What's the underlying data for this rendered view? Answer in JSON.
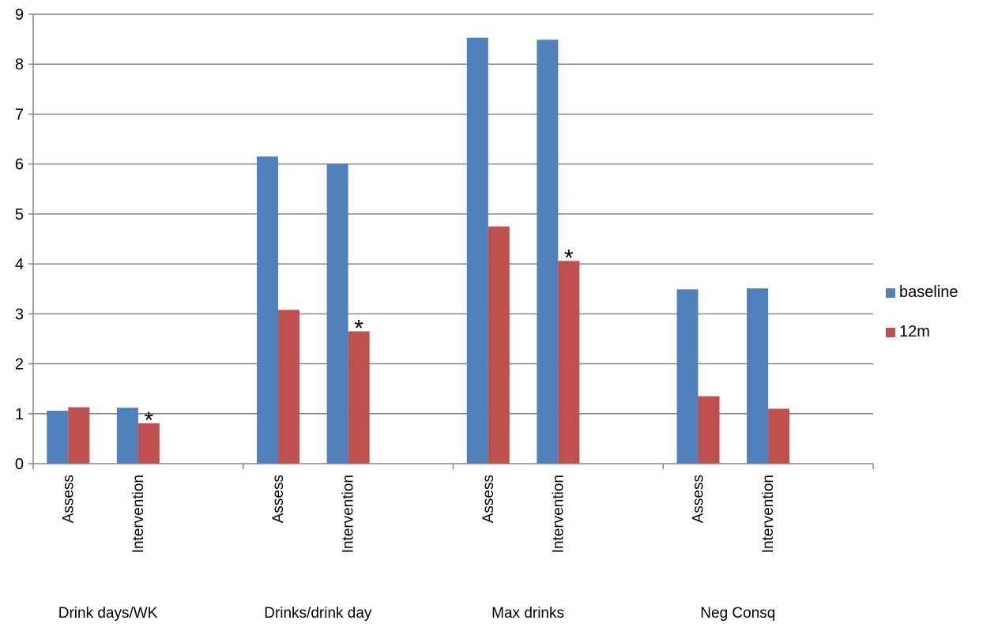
{
  "chart_data": {
    "type": "bar",
    "title": "",
    "xlabel": "",
    "ylabel": "",
    "ylim": [
      0,
      9
    ],
    "yticks": [
      0,
      1,
      2,
      3,
      4,
      5,
      6,
      7,
      8,
      9
    ],
    "grid": true,
    "legend_position": "right",
    "groups": [
      "Drink days/WK",
      "Drinks/drink day",
      "Max drinks",
      "Neg Consq"
    ],
    "subcategories": [
      "Assess",
      "Intervention"
    ],
    "series": [
      {
        "name": "baseline",
        "color": "#4F81BD",
        "values": [
          [
            1.06,
            1.12
          ],
          [
            6.15,
            6.0
          ],
          [
            8.53,
            8.49
          ],
          [
            3.49,
            3.51
          ]
        ]
      },
      {
        "name": "12m",
        "color": "#C0504D",
        "values": [
          [
            1.13,
            0.81
          ],
          [
            3.08,
            2.65
          ],
          [
            4.75,
            4.06
          ],
          [
            1.35,
            1.1
          ]
        ]
      }
    ],
    "annotations": [
      {
        "group": 0,
        "subcategory": 1,
        "text": "*"
      },
      {
        "group": 1,
        "subcategory": 1,
        "text": "*"
      },
      {
        "group": 2,
        "subcategory": 1,
        "text": "*"
      }
    ]
  }
}
